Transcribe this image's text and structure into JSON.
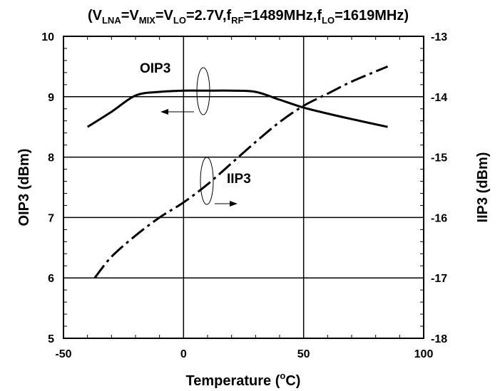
{
  "chart_data": {
    "type": "line",
    "title": {
      "prefix": "(V",
      "sub1": "LNA",
      "part1": "=V",
      "sub2": "MIX",
      "part2": "=V",
      "sub3": "LO",
      "part3": "=2.7V,f",
      "sub4": "RF",
      "part4": "=1489MHz,f",
      "sub5": "LO",
      "part5": "=1619MHz)"
    },
    "xlabel": {
      "text": "Temperature (",
      "sup": "o",
      "unit": "C)"
    },
    "ylabel_left": "OIP3 (dBm)",
    "ylabel_right": "IIP3 (dBm)",
    "x_ticks": [
      "-50",
      "0",
      "50",
      "100"
    ],
    "y_left_ticks": [
      "5",
      "6",
      "7",
      "8",
      "9",
      "10"
    ],
    "y_right_ticks": [
      "-18",
      "-17",
      "-16",
      "-15",
      "-14",
      "-13"
    ],
    "xlim": [
      -50,
      100
    ],
    "ylim_left": [
      5,
      10
    ],
    "ylim_right": [
      -18,
      -13
    ],
    "grid": true,
    "series": [
      {
        "name": "OIP3",
        "axis": "left",
        "style": "solid",
        "x": [
          -40,
          -30,
          -20,
          -10,
          0,
          10,
          20,
          30,
          40,
          50,
          60,
          70,
          85
        ],
        "y": [
          8.5,
          8.75,
          9.02,
          9.08,
          9.1,
          9.1,
          9.1,
          9.08,
          8.95,
          8.82,
          8.72,
          8.63,
          8.5
        ]
      },
      {
        "name": "IIP3",
        "axis": "right",
        "style": "dashdot",
        "x": [
          -37,
          -30,
          -20,
          -10,
          0,
          10,
          20,
          30,
          40,
          50,
          60,
          70,
          85
        ],
        "y": [
          -17.0,
          -16.65,
          -16.3,
          -16.0,
          -15.75,
          -15.45,
          -15.1,
          -14.75,
          -14.42,
          -14.15,
          -13.95,
          -13.75,
          -13.5
        ]
      }
    ]
  }
}
